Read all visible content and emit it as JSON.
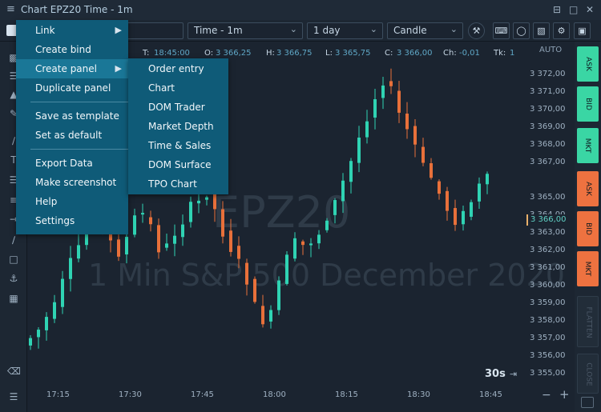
{
  "window": {
    "menu_glyph": "≡",
    "title": "Chart EPZ20 Time - 1m",
    "buttons": [
      "⊟",
      "□",
      "✕"
    ]
  },
  "toolbar": {
    "chart_type": "Time - 1m",
    "period": "1 day",
    "style": "Candle"
  },
  "info": {
    "time_label": "T:",
    "time_value": "18:45:00",
    "open_label": "O:",
    "open_value": "3 366,25",
    "high_label": "H:",
    "high_value": "3 366,75",
    "low_label": "L:",
    "low_value": "3 365,75",
    "close_label": "C:",
    "close_value": "3 366,00",
    "change_label": "Ch:",
    "change_value": "-0,01",
    "ticks_label": "Tk:",
    "ticks_value": "1"
  },
  "chart": {
    "watermark_symbol": "EPZ20",
    "watermark_desc": "1 Min  S&P 500  December 2020",
    "zoom_label": "30s",
    "price_axis_auto": "AUTO",
    "current_price": "3 366,00",
    "price_labels": [
      "3 372,00",
      "3 371,00",
      "3 370,00",
      "3 369,00",
      "3 368,00",
      "3 367,00",
      "3 365,00",
      "3 364,00",
      "3 363,00",
      "3 362,00",
      "3 361,00",
      "3 360,00",
      "3 359,00",
      "3 358,00",
      "3 357,00",
      "3 356,00",
      "3 355,00"
    ],
    "time_labels": [
      "17:15",
      "17:30",
      "17:45",
      "18:00",
      "18:15",
      "18:30",
      "18:45"
    ],
    "colors": {
      "up": "#2fd3b3",
      "down": "#e8703a",
      "bg": "#1b2430"
    }
  },
  "trade_buttons": [
    "ASK",
    "BID",
    "MKT",
    "ASK",
    "BID",
    "MKT",
    "FLATTEN",
    "CLOSE"
  ],
  "menu_main": {
    "items": [
      "Link",
      "Create bind",
      "Create panel",
      "Duplicate panel",
      "Save as template",
      "Set as default",
      "Export Data",
      "Make screenshot",
      "Help",
      "Settings"
    ]
  },
  "menu_sub": {
    "items": [
      "Order entry",
      "Chart",
      "DOM Trader",
      "Market Depth",
      "Time & Sales",
      "DOM Surface",
      "TPO Chart"
    ]
  }
}
